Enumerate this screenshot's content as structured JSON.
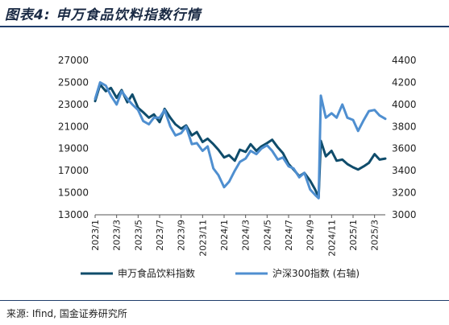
{
  "header": {
    "title": "图表4:  申万食品饮料指数行情"
  },
  "footer": {
    "source": "来源: Ifind, 国金证券研究所"
  },
  "colors": {
    "series1": "#0f4c6b",
    "series2": "#4f8fd0",
    "rule": "#1f3d6b"
  },
  "chart_data": {
    "type": "line",
    "title": "图表4:  申万食品饮料指数行情",
    "left_axis": {
      "ylim": [
        13000,
        27000
      ],
      "ticks": [
        "13000",
        "15000",
        "17000",
        "19000",
        "21000",
        "23000",
        "25000",
        "27000"
      ]
    },
    "right_axis": {
      "ylim": [
        3000,
        4400
      ],
      "ticks": [
        "3000",
        "3200",
        "3400",
        "3600",
        "3800",
        "4000",
        "4200",
        "4400"
      ]
    },
    "x_ticks": [
      "2023/1",
      "2023/3",
      "2023/5",
      "2023/7",
      "2023/9",
      "2023/11",
      "2024/1",
      "2024/3",
      "2024/5",
      "2024/7",
      "2024/9",
      "2024/11",
      "2025/1",
      "2025/3"
    ],
    "x_range": [
      "2023-01",
      "2025-04"
    ],
    "legend_position": "bottom",
    "grid": false,
    "series": [
      {
        "name": "申万食品饮料指数",
        "axis": "left",
        "x": [
          "2023-01",
          "2023-01-15",
          "2023-02",
          "2023-02-15",
          "2023-03",
          "2023-03-15",
          "2023-04",
          "2023-04-15",
          "2023-05",
          "2023-05-15",
          "2023-06",
          "2023-06-15",
          "2023-07",
          "2023-07-15",
          "2023-08",
          "2023-08-15",
          "2023-09",
          "2023-09-15",
          "2023-10",
          "2023-10-15",
          "2023-11",
          "2023-11-15",
          "2023-12",
          "2023-12-15",
          "2024-01",
          "2024-01-15",
          "2024-02",
          "2024-02-15",
          "2024-03",
          "2024-03-15",
          "2024-04",
          "2024-04-15",
          "2024-05",
          "2024-05-15",
          "2024-06",
          "2024-06-15",
          "2024-07",
          "2024-07-15",
          "2024-08",
          "2024-08-15",
          "2024-09",
          "2024-09-15",
          "2024-09-25",
          "2024-10",
          "2024-10-15",
          "2024-11",
          "2024-11-15",
          "2024-12",
          "2024-12-15",
          "2025-01",
          "2025-01-15",
          "2025-02",
          "2025-02-15",
          "2025-03",
          "2025-03-15",
          "2025-04"
        ],
        "values": [
          23300,
          24800,
          24200,
          24500,
          23600,
          24300,
          23200,
          23900,
          22700,
          22300,
          21800,
          22100,
          21400,
          22600,
          21800,
          21200,
          20800,
          21100,
          20200,
          20500,
          19600,
          19900,
          19400,
          18900,
          18200,
          18400,
          17900,
          18900,
          18700,
          19400,
          18800,
          19200,
          19500,
          19800,
          19100,
          18600,
          17600,
          17100,
          16500,
          16800,
          16100,
          15300,
          14600,
          19700,
          18300,
          18800,
          17900,
          18000,
          17600,
          17300,
          17100,
          17400,
          17700,
          18500,
          18000,
          18100
        ]
      },
      {
        "name": "沪深300指数 (右轴)",
        "axis": "right",
        "x": [
          "2023-01",
          "2023-01-15",
          "2023-02",
          "2023-02-15",
          "2023-03",
          "2023-03-15",
          "2023-04",
          "2023-04-15",
          "2023-05",
          "2023-05-15",
          "2023-06",
          "2023-06-15",
          "2023-07",
          "2023-07-15",
          "2023-08",
          "2023-08-15",
          "2023-09",
          "2023-09-15",
          "2023-10",
          "2023-10-15",
          "2023-11",
          "2023-11-15",
          "2023-12",
          "2023-12-15",
          "2024-01",
          "2024-01-15",
          "2024-02",
          "2024-02-15",
          "2024-03",
          "2024-03-15",
          "2024-04",
          "2024-04-15",
          "2024-05",
          "2024-05-15",
          "2024-06",
          "2024-06-15",
          "2024-07",
          "2024-07-15",
          "2024-08",
          "2024-08-15",
          "2024-09",
          "2024-09-15",
          "2024-09-25",
          "2024-10",
          "2024-10-15",
          "2024-11",
          "2024-11-15",
          "2024-12",
          "2024-12-15",
          "2025-01",
          "2025-01-15",
          "2025-02",
          "2025-02-15",
          "2025-03",
          "2025-03-15",
          "2025-04"
        ],
        "values": [
          4050,
          4200,
          4170,
          4080,
          4000,
          4120,
          4050,
          4000,
          3950,
          3850,
          3820,
          3880,
          3880,
          3950,
          3800,
          3720,
          3740,
          3800,
          3640,
          3650,
          3580,
          3620,
          3420,
          3360,
          3250,
          3300,
          3400,
          3480,
          3510,
          3580,
          3550,
          3600,
          3630,
          3580,
          3500,
          3520,
          3440,
          3420,
          3340,
          3380,
          3230,
          3180,
          3150,
          4080,
          3880,
          3920,
          3880,
          4000,
          3880,
          3860,
          3760,
          3860,
          3940,
          3950,
          3900,
          3870
        ]
      }
    ]
  }
}
